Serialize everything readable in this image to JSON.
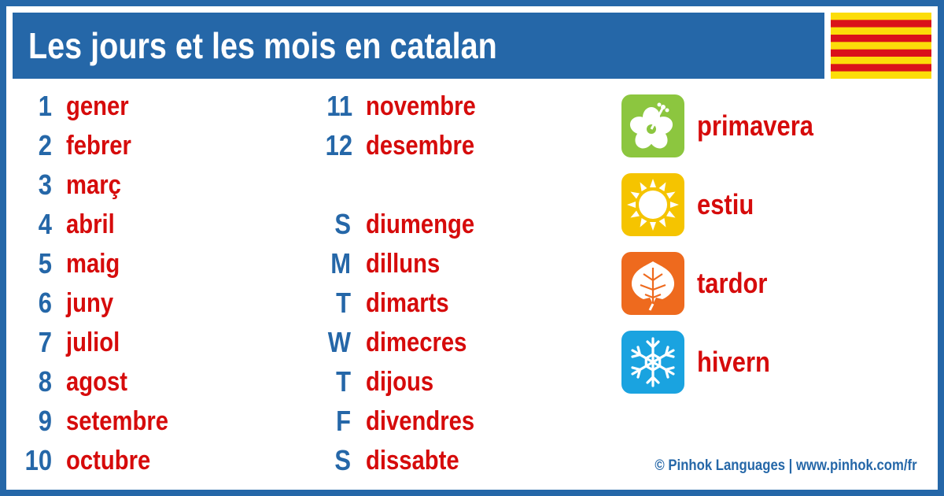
{
  "title": "Les jours et les mois en catalan",
  "flag": {
    "colors": {
      "yellow": "#fcdd09",
      "red": "#da121a"
    }
  },
  "months": [
    {
      "num": "1",
      "word": "gener"
    },
    {
      "num": "2",
      "word": "febrer"
    },
    {
      "num": "3",
      "word": "març"
    },
    {
      "num": "4",
      "word": "abril"
    },
    {
      "num": "5",
      "word": "maig"
    },
    {
      "num": "6",
      "word": "juny"
    },
    {
      "num": "7",
      "word": "juliol"
    },
    {
      "num": "8",
      "word": "agost"
    },
    {
      "num": "9",
      "word": "setembre"
    },
    {
      "num": "10",
      "word": "octubre"
    },
    {
      "num": "11",
      "word": "novembre"
    },
    {
      "num": "12",
      "word": "desembre"
    }
  ],
  "days": [
    {
      "abbr": "S",
      "word": "diumenge"
    },
    {
      "abbr": "M",
      "word": "dilluns"
    },
    {
      "abbr": "T",
      "word": "dimarts"
    },
    {
      "abbr": "W",
      "word": "dimecres"
    },
    {
      "abbr": "T",
      "word": "dijous"
    },
    {
      "abbr": "F",
      "word": "divendres"
    },
    {
      "abbr": "S",
      "word": "dissabte"
    }
  ],
  "seasons": [
    {
      "label": "primavera",
      "icon": "hibiscus-flower-icon",
      "color": "#8cc63f"
    },
    {
      "label": "estiu",
      "icon": "sun-icon",
      "color": "#f5c400"
    },
    {
      "label": "tardor",
      "icon": "leaf-icon",
      "color": "#ee6a1e"
    },
    {
      "label": "hivern",
      "icon": "snowflake-icon",
      "color": "#1aa3e0"
    }
  ],
  "footer": "© Pinhok Languages | www.pinhok.com/fr",
  "colors": {
    "accent_blue": "#2567a8",
    "word_red": "#d60b0b",
    "background": "#ffffff"
  }
}
